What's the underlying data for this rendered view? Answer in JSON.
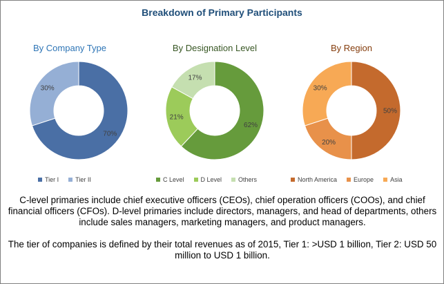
{
  "title": "Breakdown of Primary Participants",
  "title_color": "#1f4e79",
  "chart_data": [
    {
      "type": "pie",
      "title": "By Company Type",
      "title_color": "#2e75b6",
      "categories": [
        "Tier I",
        "Tier II"
      ],
      "values": [
        70,
        30
      ],
      "labels": [
        "70%",
        "30%"
      ],
      "colors": [
        "#4a6fa5",
        "#95afd5"
      ],
      "donut": true
    },
    {
      "type": "pie",
      "title": "By Designation Level",
      "title_color": "#375623",
      "categories": [
        "C Level",
        "D Level",
        "Others"
      ],
      "values": [
        62,
        21,
        17
      ],
      "labels": [
        "62%",
        "21%",
        "17%"
      ],
      "colors": [
        "#669b3c",
        "#9ccb5a",
        "#c5dfb0"
      ],
      "donut": true
    },
    {
      "type": "pie",
      "title": "By Region",
      "title_color": "#843c0c",
      "categories": [
        "North America",
        "Europe",
        "Asia"
      ],
      "values": [
        50,
        20,
        30
      ],
      "labels": [
        "50%",
        "20%",
        "30%"
      ],
      "colors": [
        "#c46a2d",
        "#e8914a",
        "#f7a955"
      ],
      "donut": true
    }
  ],
  "footnotes": [
    "C-level primaries include chief executive officers (CEOs), chief operation officers (COOs), and chief financial officers (CFOs). D-level primaries include directors, managers, and head of departments, others include sales managers, marketing managers, and product managers.",
    "The tier of companies is defined by their total revenues as of 2015, Tier 1: >USD 1 billion, Tier 2: USD 50 million to USD 1 billion."
  ]
}
